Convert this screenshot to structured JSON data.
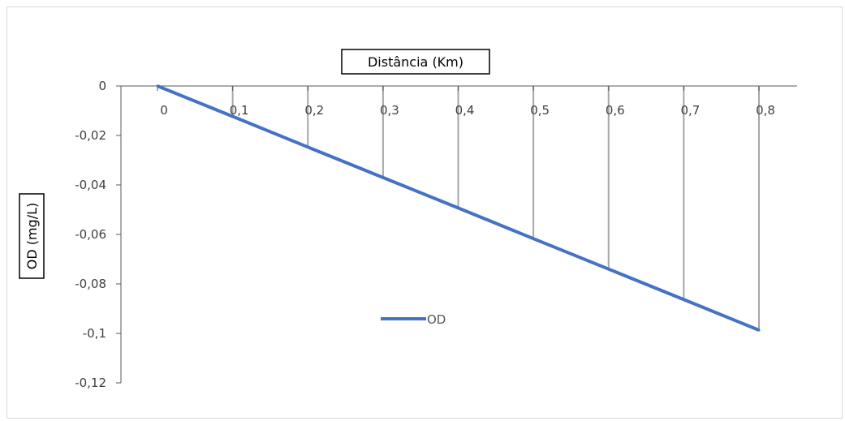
{
  "chart_data": {
    "type": "line",
    "title": "",
    "xlabel": "Distância (Km)",
    "ylabel": "OD (mg/L)",
    "x": [
      0,
      0.1,
      0.2,
      0.3,
      0.4,
      0.5,
      0.6,
      0.7,
      0.8
    ],
    "x_tick_labels": [
      "0",
      "0,1",
      "0,2",
      "0,3",
      "0,4",
      "0,5",
      "0,6",
      "0,7",
      "0,8"
    ],
    "series": [
      {
        "name": "OD",
        "values": [
          0,
          -0.0123,
          -0.0247,
          -0.037,
          -0.0493,
          -0.0617,
          -0.074,
          -0.0863,
          -0.0987
        ],
        "color": "#4472C4"
      }
    ],
    "ylim": [
      -0.12,
      0
    ],
    "y_ticks": [
      0,
      -0.02,
      -0.04,
      -0.06,
      -0.08,
      -0.1,
      -0.12
    ],
    "y_tick_labels": [
      "0",
      "-0,02",
      "-0,04",
      "-0,06",
      "-0,08",
      "-0,1",
      "-0,12"
    ],
    "x_axis_position": "top",
    "drop_lines": true,
    "grid": false,
    "legend_position": "inside-bottom-center",
    "colors": {
      "axis": "#595959",
      "drop_line": "#a6a6a6",
      "tick_label": "#404040"
    }
  }
}
